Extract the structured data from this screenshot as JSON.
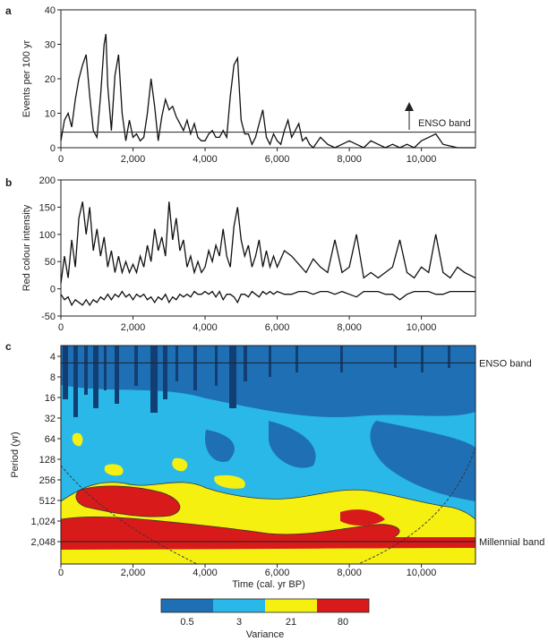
{
  "chart_data": [
    {
      "panel_label": "a",
      "type": "line",
      "ylabel": "Events per 100 yr",
      "xlim": [
        0,
        11500
      ],
      "ylim": [
        0,
        40
      ],
      "x_ticks": [
        0,
        2000,
        4000,
        6000,
        8000,
        10000
      ],
      "x_tick_labels": [
        "0",
        "2,000",
        "4,000",
        "6,000",
        "8,000",
        "10,000"
      ],
      "y_ticks": [
        0,
        10,
        20,
        30,
        40
      ],
      "reference_line": {
        "y": 4.5,
        "label": "ENSO band"
      },
      "series": [
        {
          "x": [
            0,
            100,
            200,
            300,
            400,
            500,
            600,
            700,
            800,
            900,
            1000,
            1100,
            1200,
            1250,
            1300,
            1400,
            1500,
            1600,
            1700,
            1800,
            1900,
            2000,
            2100,
            2200,
            2300,
            2400,
            2500,
            2600,
            2700,
            2800,
            2900,
            3000,
            3100,
            3200,
            3300,
            3400,
            3500,
            3600,
            3700,
            3800,
            3900,
            4000,
            4100,
            4200,
            4300,
            4400,
            4500,
            4600,
            4700,
            4800,
            4900,
            5000,
            5100,
            5200,
            5300,
            5400,
            5500,
            5600,
            5700,
            5800,
            5900,
            6000,
            6100,
            6200,
            6300,
            6400,
            6500,
            6600,
            6700,
            6800,
            6900,
            7000,
            7200,
            7400,
            7600,
            7800,
            8000,
            8200,
            8400,
            8600,
            8800,
            9000,
            9200,
            9400,
            9600,
            9800,
            10000,
            10200,
            10400,
            10600,
            11000,
            11500
          ],
          "y": [
            2,
            8,
            10,
            6,
            14,
            20,
            24,
            27,
            15,
            5,
            3,
            15,
            30,
            33,
            18,
            5,
            21,
            27,
            10,
            2,
            8,
            3,
            4,
            2,
            3,
            10,
            20,
            12,
            2,
            9,
            14,
            11,
            12,
            9,
            7,
            5,
            8,
            4,
            7,
            3,
            2,
            2,
            4,
            5,
            3,
            3,
            5,
            3,
            15,
            24,
            26,
            8,
            4,
            4,
            1,
            3,
            7,
            11,
            3,
            1,
            4,
            2,
            1,
            5,
            8,
            3,
            5,
            7,
            2,
            3,
            1,
            0,
            3,
            1,
            0,
            1,
            2,
            1,
            0,
            2,
            1,
            0,
            1,
            0,
            1,
            0,
            2,
            3,
            4,
            1,
            0,
            0
          ]
        }
      ]
    },
    {
      "panel_label": "b",
      "type": "line",
      "ylabel": "Red colour intensity",
      "xlim": [
        0,
        11500
      ],
      "ylim": [
        -50,
        200
      ],
      "x_ticks": [
        0,
        2000,
        4000,
        6000,
        8000,
        10000
      ],
      "x_tick_labels": [
        "0",
        "2,000",
        "4,000",
        "6,000",
        "8,000",
        "10,000"
      ],
      "y_ticks": [
        -50,
        0,
        50,
        100,
        150,
        200
      ],
      "series": [
        {
          "x": [
            0,
            100,
            200,
            300,
            400,
            500,
            600,
            700,
            800,
            900,
            1000,
            1100,
            1200,
            1300,
            1400,
            1500,
            1600,
            1700,
            1800,
            1900,
            2000,
            2100,
            2200,
            2300,
            2400,
            2500,
            2600,
            2700,
            2800,
            2900,
            3000,
            3100,
            3200,
            3300,
            3400,
            3500,
            3600,
            3700,
            3800,
            3900,
            4000,
            4100,
            4200,
            4300,
            4400,
            4500,
            4600,
            4700,
            4800,
            4900,
            5000,
            5100,
            5200,
            5300,
            5400,
            5500,
            5600,
            5700,
            5800,
            5900,
            6000,
            6200,
            6400,
            6600,
            6800,
            7000,
            7200,
            7400,
            7600,
            7800,
            8000,
            8200,
            8400,
            8600,
            8800,
            9000,
            9200,
            9400,
            9600,
            9800,
            10000,
            10200,
            10400,
            10600,
            10800,
            11000,
            11200,
            11500
          ],
          "y": [
            10,
            60,
            20,
            90,
            40,
            130,
            160,
            100,
            150,
            70,
            110,
            60,
            95,
            40,
            70,
            30,
            60,
            30,
            50,
            30,
            45,
            30,
            60,
            40,
            80,
            50,
            110,
            70,
            95,
            60,
            160,
            90,
            130,
            70,
            90,
            40,
            60,
            30,
            50,
            30,
            40,
            70,
            50,
            80,
            60,
            110,
            60,
            40,
            115,
            150,
            90,
            60,
            80,
            40,
            60,
            90,
            40,
            70,
            40,
            60,
            40,
            70,
            60,
            45,
            30,
            55,
            40,
            30,
            90,
            30,
            40,
            100,
            20,
            30,
            20,
            30,
            40,
            90,
            30,
            20,
            40,
            30,
            100,
            30,
            20,
            40,
            30,
            20
          ]
        },
        {
          "x": [
            0,
            100,
            200,
            300,
            400,
            500,
            600,
            700,
            800,
            900,
            1000,
            1100,
            1200,
            1300,
            1400,
            1500,
            1600,
            1700,
            1800,
            1900,
            2000,
            2100,
            2200,
            2300,
            2400,
            2500,
            2600,
            2700,
            2800,
            2900,
            3000,
            3100,
            3200,
            3300,
            3400,
            3500,
            3600,
            3700,
            3800,
            3900,
            4000,
            4100,
            4200,
            4300,
            4400,
            4500,
            4600,
            4700,
            4800,
            4900,
            5000,
            5100,
            5200,
            5300,
            5400,
            5500,
            5600,
            5700,
            5800,
            5900,
            6000,
            6200,
            6400,
            6600,
            6800,
            7000,
            7200,
            7400,
            7600,
            7800,
            8000,
            8200,
            8400,
            8600,
            8800,
            9000,
            9200,
            9400,
            9600,
            9800,
            10000,
            10200,
            10400,
            10600,
            10800,
            11000,
            11200,
            11500
          ],
          "y": [
            -10,
            -20,
            -15,
            -30,
            -20,
            -25,
            -30,
            -20,
            -30,
            -20,
            -25,
            -15,
            -20,
            -10,
            -20,
            -10,
            -15,
            -5,
            -15,
            -10,
            -20,
            -10,
            -15,
            -10,
            -20,
            -15,
            -25,
            -15,
            -20,
            -10,
            -25,
            -15,
            -20,
            -10,
            -15,
            -10,
            -15,
            -5,
            -10,
            -10,
            -5,
            -10,
            -5,
            -15,
            -5,
            -20,
            -10,
            -10,
            -15,
            -25,
            -10,
            -10,
            -15,
            -5,
            -10,
            -15,
            -5,
            -10,
            -5,
            -10,
            -5,
            -10,
            -10,
            -5,
            -5,
            -10,
            -5,
            -5,
            -10,
            -5,
            -10,
            -15,
            -5,
            -5,
            -5,
            -10,
            -10,
            -20,
            -10,
            -5,
            -5,
            -5,
            -10,
            -10,
            -5,
            -5,
            -5,
            -5
          ]
        }
      ]
    },
    {
      "panel_label": "c",
      "type": "heatmap",
      "xlabel": "Time (cal. yr BP)",
      "ylabel": "Period (yr)",
      "xlim": [
        0,
        11500
      ],
      "x_ticks": [
        0,
        2000,
        4000,
        6000,
        8000,
        10000
      ],
      "x_tick_labels": [
        "0",
        "2,000",
        "4,000",
        "6,000",
        "8,000",
        "10,000"
      ],
      "y_scale": "log2",
      "y_ticks": [
        4,
        8,
        16,
        32,
        64,
        128,
        256,
        512,
        1024,
        2048
      ],
      "y_tick_labels": [
        "4",
        "8",
        "16",
        "32",
        "64",
        "128",
        "256",
        "512",
        "1,024",
        "2,048"
      ],
      "reference_lines": [
        {
          "period": 5,
          "label": "ENSO band"
        },
        {
          "period": 2048,
          "label": "Millennial band"
        }
      ],
      "colorbar": {
        "label": "Variance",
        "ticks": [
          "0.5",
          "3",
          "21",
          "80"
        ],
        "colors": [
          "#1f6fb5",
          "#29b8e8",
          "#f5f010",
          "#d81a1a"
        ]
      },
      "background_color": "#1f6fb5"
    }
  ]
}
